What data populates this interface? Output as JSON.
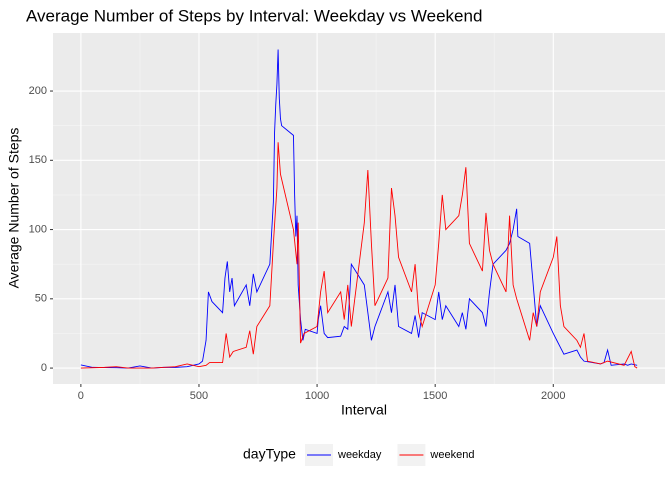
{
  "chart_data": {
    "type": "line",
    "title": "Average Number of Steps by Interval: Weekday vs Weekend",
    "x_label": "Interval",
    "y_label": "Average Number of Steps",
    "legend_title": "dayType",
    "legend_position": "bottom",
    "grid": true,
    "xlim": [
      -118,
      2473
    ],
    "xticks": [
      0,
      500,
      1000,
      1500,
      2000
    ],
    "ylim": [
      -11.5,
      241.9
    ],
    "yticks": [
      0,
      50,
      100,
      150,
      200
    ],
    "series": [
      {
        "name": "weekday",
        "color": "#0000ff",
        "x": [
          0,
          50,
          100,
          150,
          200,
          250,
          300,
          350,
          400,
          450,
          500,
          515,
          530,
          540,
          555,
          600,
          610,
          620,
          630,
          640,
          650,
          700,
          715,
          730,
          745,
          800,
          815,
          820,
          825,
          830,
          835,
          840,
          845,
          850,
          900,
          905,
          910,
          915,
          920,
          930,
          940,
          950,
          1000,
          1005,
          1015,
          1030,
          1045,
          1100,
          1115,
          1130,
          1145,
          1200,
          1215,
          1230,
          1245,
          1300,
          1315,
          1330,
          1345,
          1400,
          1415,
          1430,
          1445,
          1500,
          1515,
          1530,
          1545,
          1600,
          1615,
          1630,
          1645,
          1700,
          1715,
          1730,
          1745,
          1800,
          1815,
          1830,
          1845,
          1850,
          1900,
          1915,
          1930,
          1945,
          2000,
          2015,
          2030,
          2045,
          2100,
          2115,
          2130,
          2200,
          2215,
          2230,
          2245,
          2300,
          2315,
          2330,
          2355
        ],
        "values": [
          2.3,
          0.5,
          0.4,
          0.3,
          0,
          1.5,
          0,
          0.5,
          0.5,
          1,
          3,
          5,
          20,
          55,
          48,
          40,
          65,
          77,
          55,
          65,
          45,
          60,
          45,
          68,
          55,
          75,
          120,
          170,
          190,
          205,
          230,
          195,
          180,
          175,
          168,
          125,
          95,
          110,
          60,
          35,
          20,
          28,
          25,
          35,
          45,
          25,
          22,
          23,
          30,
          28,
          75,
          60,
          40,
          20,
          30,
          55,
          40,
          60,
          30,
          25,
          38,
          22,
          40,
          35,
          55,
          35,
          45,
          30,
          40,
          28,
          50,
          40,
          30,
          55,
          75,
          85,
          90,
          100,
          115,
          95,
          90,
          60,
          30,
          45,
          25,
          20,
          15,
          10,
          13,
          8,
          5,
          3,
          4,
          13,
          2,
          3,
          2,
          3,
          2
        ]
      },
      {
        "name": "weekend",
        "color": "#ff0000",
        "x": [
          0,
          100,
          150,
          200,
          300,
          400,
          450,
          500,
          530,
          545,
          600,
          615,
          630,
          645,
          700,
          715,
          730,
          745,
          800,
          815,
          830,
          835,
          845,
          900,
          915,
          920,
          930,
          945,
          1000,
          1015,
          1030,
          1045,
          1100,
          1115,
          1130,
          1145,
          1200,
          1215,
          1230,
          1245,
          1300,
          1315,
          1330,
          1345,
          1400,
          1415,
          1430,
          1445,
          1500,
          1515,
          1530,
          1545,
          1600,
          1615,
          1630,
          1645,
          1700,
          1715,
          1730,
          1745,
          1800,
          1815,
          1830,
          1845,
          1900,
          1915,
          1930,
          1945,
          2000,
          2015,
          2030,
          2045,
          2100,
          2115,
          2130,
          2145,
          2200,
          2230,
          2300,
          2330,
          2345,
          2355
        ],
        "values": [
          0,
          0.5,
          1,
          0,
          0,
          1,
          3,
          1,
          2,
          4,
          4,
          25,
          8,
          12,
          15,
          27,
          10,
          30,
          45,
          90,
          130,
          163,
          140,
          100,
          75,
          105,
          18,
          25,
          30,
          55,
          70,
          40,
          55,
          35,
          60,
          30,
          105,
          143,
          90,
          45,
          65,
          130,
          110,
          80,
          55,
          75,
          40,
          30,
          60,
          90,
          125,
          100,
          110,
          125,
          145,
          90,
          70,
          112,
          85,
          75,
          55,
          110,
          60,
          50,
          20,
          40,
          30,
          55,
          80,
          95,
          45,
          30,
          20,
          15,
          25,
          5,
          3,
          5,
          2,
          12,
          1,
          0
        ]
      }
    ]
  }
}
